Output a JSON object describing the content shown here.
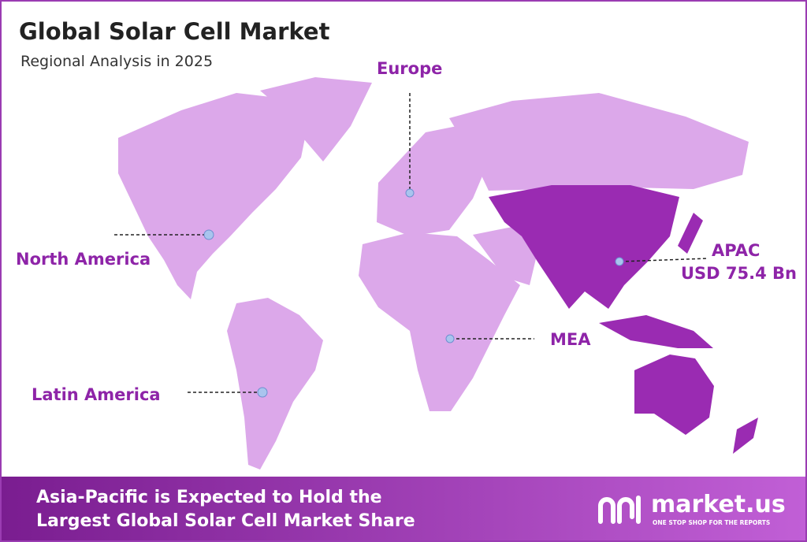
{
  "header": {
    "title": "Global Solar Cell Market",
    "subtitle": "Regional Analysis in 2025"
  },
  "regions": [
    {
      "label": "Europe"
    },
    {
      "label": "North America"
    },
    {
      "label": "Latin America"
    },
    {
      "label": "MEA"
    },
    {
      "label": "APAC",
      "value_label": "USD 75.4 Bn"
    }
  ],
  "footer": {
    "headline": [
      "Asia-Pacific is Expected to Hold the",
      "Largest Global Solar Cell Market Share"
    ],
    "brand": "market.us",
    "tagline": "ONE STOP SHOP FOR THE REPORTS"
  }
}
